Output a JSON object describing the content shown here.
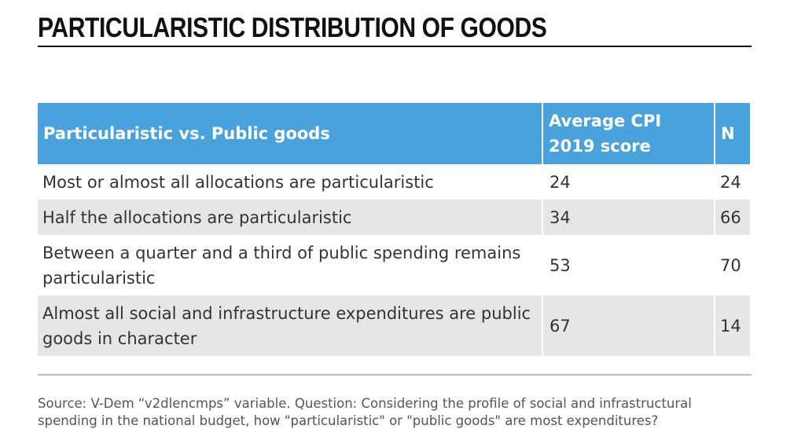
{
  "page": {
    "title": "PARTICULARISTIC DISTRIBUTION OF GOODS",
    "source": "Source: V-Dem “v2dlencmps” variable. Question: Considering the profile of social and infrastructural spending in the national budget, how \"particularistic\" or \"public goods\" are most expenditures?"
  },
  "colors": {
    "header_bg": "#4aa2dc",
    "header_text": "#ffffff",
    "stripe": "#e6e6e6",
    "title_rule": "#111111"
  },
  "chart_data": {
    "type": "table",
    "title": "PARTICULARISTIC DISTRIBUTION OF GOODS",
    "columns": [
      "Particularistic vs. Public goods",
      "Average CPI 2019 score",
      "N"
    ],
    "rows": [
      {
        "category": "Most or almost all allocations are particularistic",
        "cpi": 24,
        "n": 24
      },
      {
        "category": "Half the allocations are particularistic",
        "cpi": 34,
        "n": 66
      },
      {
        "category": "Between a quarter and a third of public spending remains particularistic",
        "cpi": 53,
        "n": 70
      },
      {
        "category": "Almost all social and infrastructure expenditures are public goods in character",
        "cpi": 67,
        "n": 14
      }
    ]
  }
}
